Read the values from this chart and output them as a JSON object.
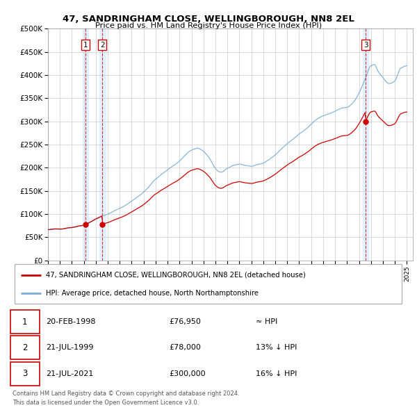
{
  "title": "47, SANDRINGHAM CLOSE, WELLINGBOROUGH, NN8 2EL",
  "subtitle": "Price paid vs. HM Land Registry's House Price Index (HPI)",
  "legend_line1": "47, SANDRINGHAM CLOSE, WELLINGBOROUGH, NN8 2EL (detached house)",
  "legend_line2": "HPI: Average price, detached house, North Northamptonshire",
  "footer1": "Contains HM Land Registry data © Crown copyright and database right 2024.",
  "footer2": "This data is licensed under the Open Government Licence v3.0.",
  "transactions": [
    {
      "num": 1,
      "date": "20-FEB-1998",
      "price": 76950,
      "rel": "≈ HPI",
      "x": 1998.13
    },
    {
      "num": 2,
      "date": "21-JUL-1999",
      "price": 78000,
      "rel": "13% ↓ HPI",
      "x": 1999.55
    },
    {
      "num": 3,
      "date": "21-JUL-2021",
      "price": 300000,
      "rel": "16% ↓ HPI",
      "x": 2021.55
    }
  ],
  "sale_color": "#cc0000",
  "hpi_color": "#7aadd4",
  "shade_color": "#ddeeff",
  "ylim": [
    0,
    500000
  ],
  "yticks": [
    0,
    50000,
    100000,
    150000,
    200000,
    250000,
    300000,
    350000,
    400000,
    450000,
    500000
  ],
  "xlim_left": 1995.0,
  "xlim_right": 2025.5
}
